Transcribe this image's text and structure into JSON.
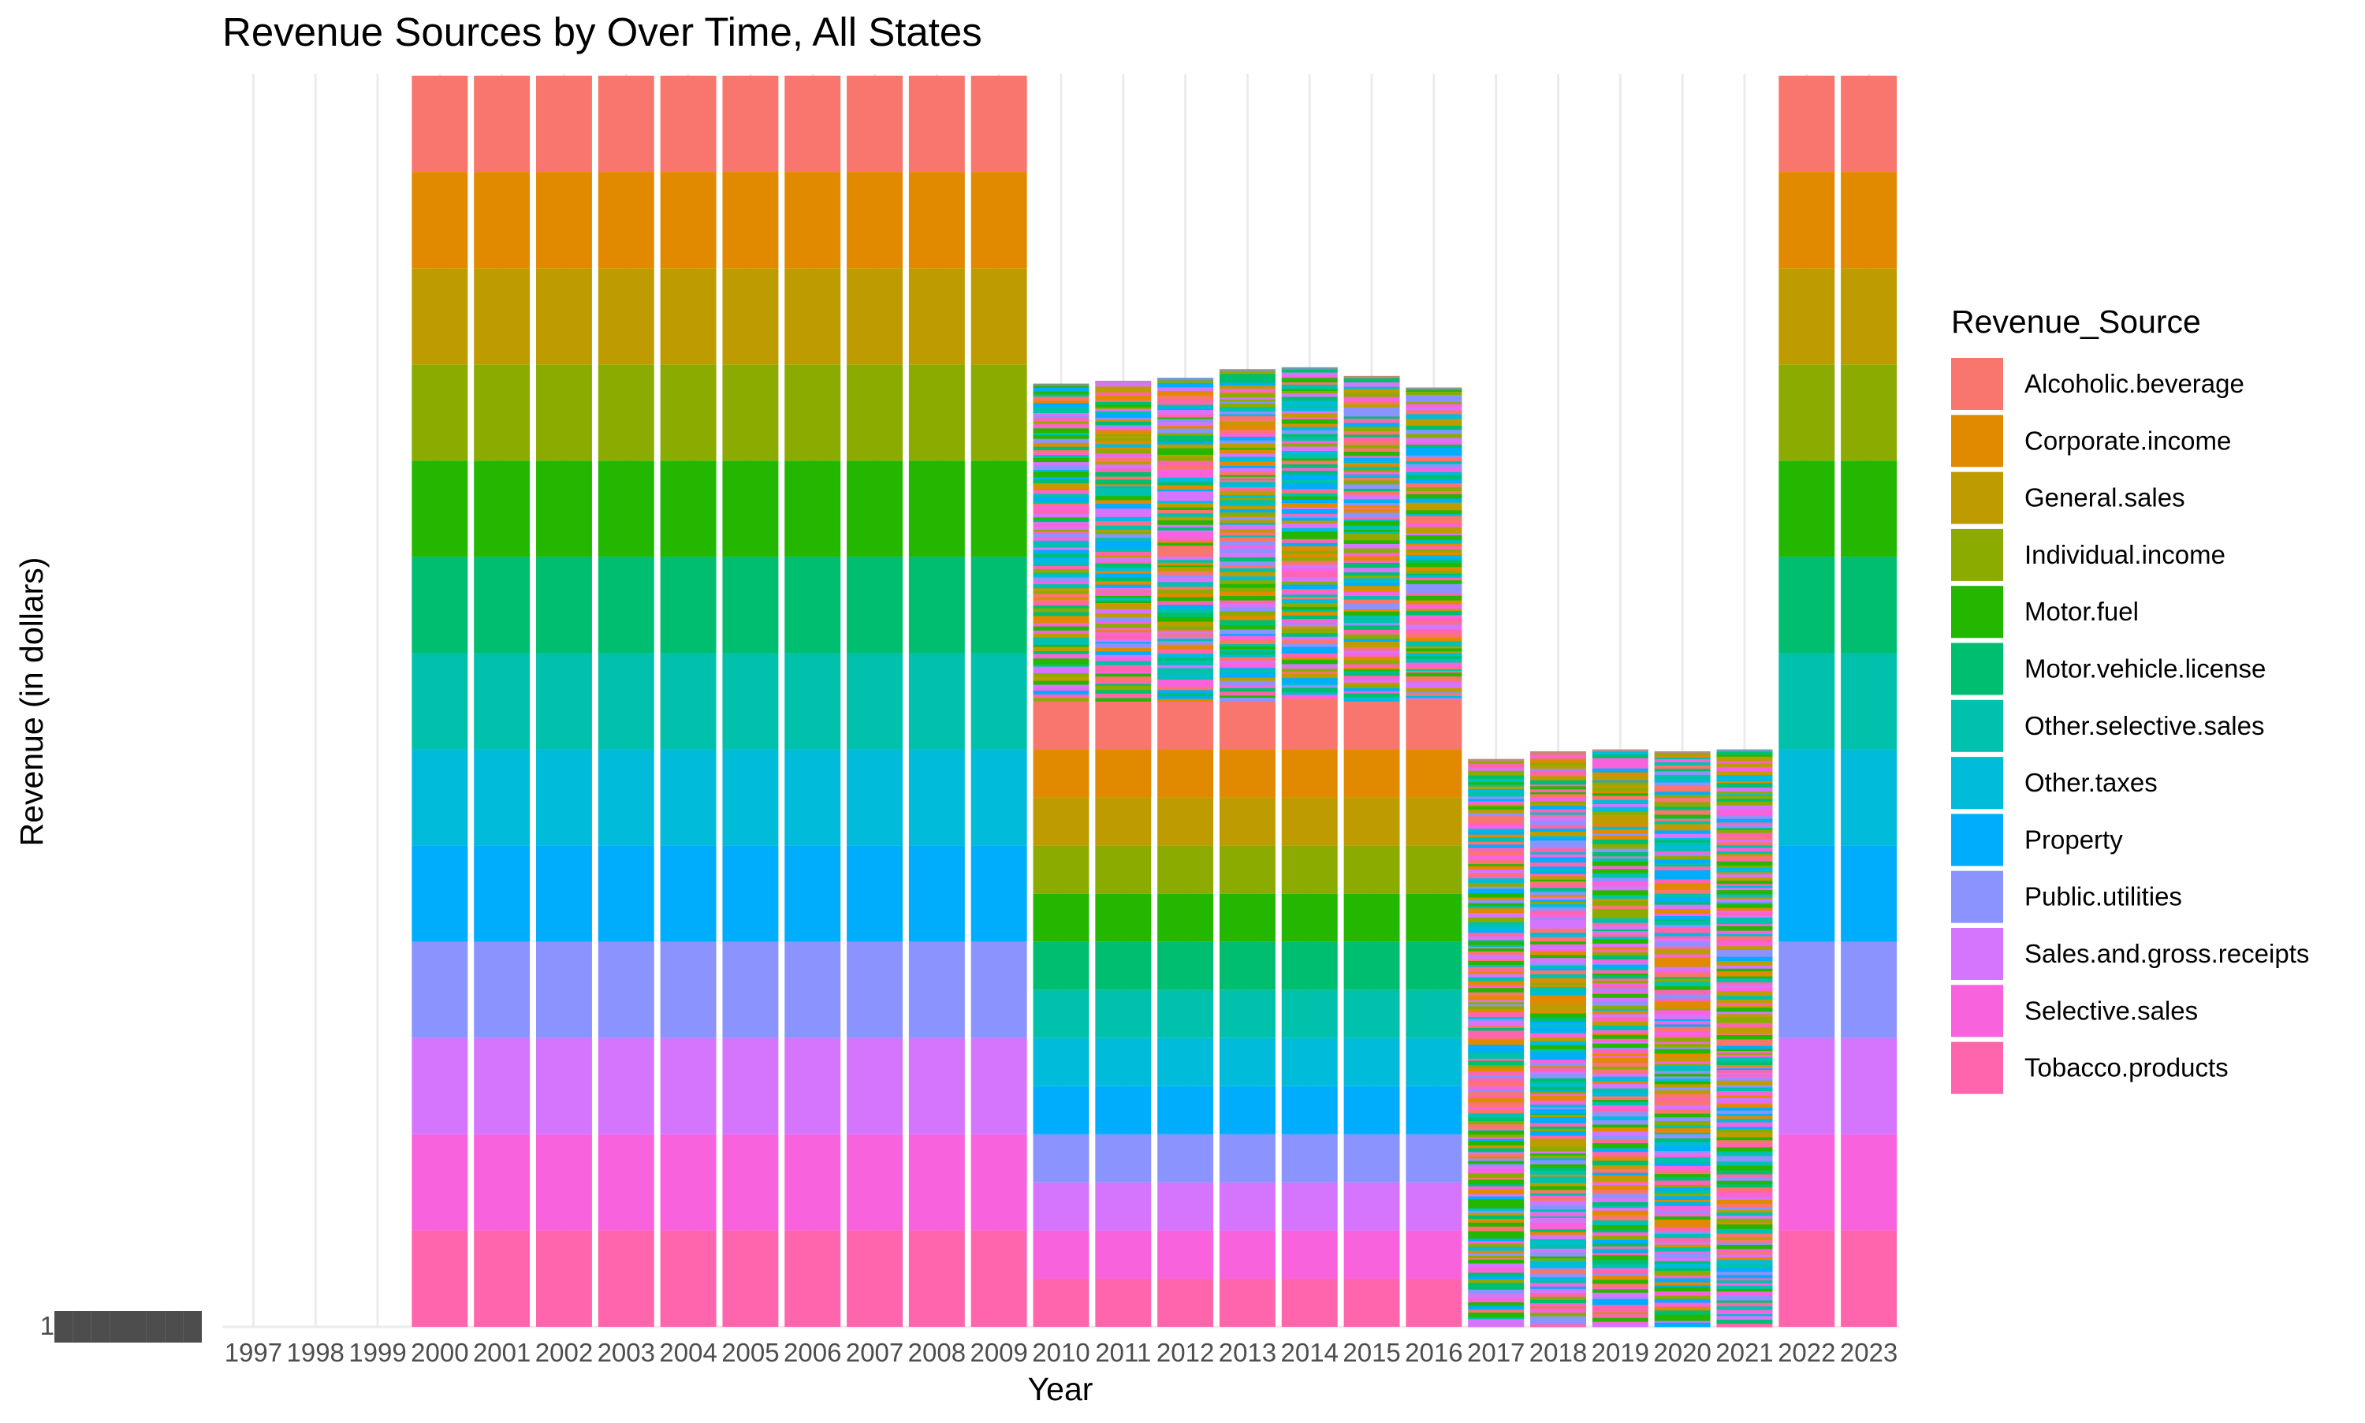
{
  "chart_data": {
    "type": "bar",
    "stacked": true,
    "title": "Revenue Sources by Over Time, All States",
    "xlabel": "Year",
    "ylabel": "Revenue (in dollars)",
    "grid": true,
    "legend_position": "right",
    "legend_title": "Revenue_Source",
    "y_tick_overplotted_text": "1████████",
    "categories": [
      "1997",
      "1998",
      "1999",
      "2000",
      "2001",
      "2002",
      "2003",
      "2004",
      "2005",
      "2006",
      "2007",
      "2008",
      "2009",
      "2010",
      "2011",
      "2012",
      "2013",
      "2014",
      "2015",
      "2016",
      "2017",
      "2018",
      "2019",
      "2020",
      "2021",
      "2022",
      "2023"
    ],
    "series": [
      {
        "name": "Alcoholic.beverage",
        "color": "#F8766D"
      },
      {
        "name": "Corporate.income",
        "color": "#E18A00"
      },
      {
        "name": "General.sales",
        "color": "#BE9C00"
      },
      {
        "name": "Individual.income",
        "color": "#8CAB00"
      },
      {
        "name": "Motor.fuel",
        "color": "#24B700"
      },
      {
        "name": "Motor.vehicle.license",
        "color": "#00BE70"
      },
      {
        "name": "Other.selective.sales",
        "color": "#00C1AB"
      },
      {
        "name": "Other.taxes",
        "color": "#00BBDA"
      },
      {
        "name": "Property",
        "color": "#00ACFC"
      },
      {
        "name": "Public.utilities",
        "color": "#8B93FF"
      },
      {
        "name": "Sales.and.gross.receipts",
        "color": "#D575FE"
      },
      {
        "name": "Selective.sales",
        "color": "#F962DD"
      },
      {
        "name": "Tobacco.products",
        "color": "#FF65AC"
      }
    ],
    "ylim": [
      0,
      13
    ],
    "stack_totals": [
      0,
      0,
      0,
      13,
      13,
      13,
      13,
      13,
      13,
      13,
      13,
      13,
      13,
      9.8,
      9.83,
      9.86,
      9.95,
      9.97,
      9.88,
      9.76,
      5.9,
      5.98,
      6.0,
      5.98,
      6.0,
      13,
      13
    ],
    "structured_band_counts": [
      0,
      0,
      0,
      13,
      13,
      13,
      13,
      13,
      13,
      13,
      13,
      13,
      13,
      13,
      13,
      13,
      13,
      13,
      13,
      13,
      0,
      0,
      0,
      0,
      0,
      13,
      13
    ],
    "structured_band_value": [
      0,
      0,
      0,
      1,
      1,
      1,
      1,
      1,
      1,
      1,
      1,
      1,
      1,
      0.5,
      0.5,
      0.5,
      0.5,
      0.5,
      0.5,
      0.5,
      0,
      0,
      0,
      0,
      0,
      1,
      1
    ]
  }
}
